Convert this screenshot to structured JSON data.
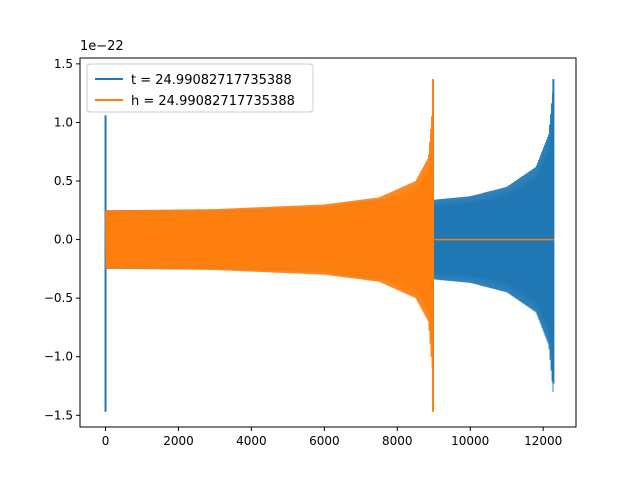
{
  "chart_data": {
    "type": "line",
    "title": "",
    "xlabel": "",
    "ylabel": "",
    "y_offset_label": "1e−22",
    "xlim": [
      -700,
      12900
    ],
    "ylim": [
      -1.6,
      1.55
    ],
    "x_ticks": [
      0,
      2000,
      4000,
      6000,
      8000,
      10000,
      12000
    ],
    "x_tick_labels": [
      "0",
      "2000",
      "4000",
      "6000",
      "8000",
      "10000",
      "12000"
    ],
    "y_ticks": [
      -1.5,
      -1.0,
      -0.5,
      0.0,
      0.5,
      1.0,
      1.5
    ],
    "y_tick_labels": [
      "−1.5",
      "−1.0",
      "−0.5",
      "0.0",
      "0.5",
      "1.0",
      "1.5"
    ],
    "grid": false,
    "legend_position": "upper-left",
    "series": [
      {
        "name": "t = 24.99082717735388",
        "color": "#1f77b4",
        "x_range": [
          0,
          12300
        ],
        "spike_at_start": {
          "x": 0,
          "min": -1.47,
          "max": 1.06
        },
        "envelope": [
          {
            "x": 0,
            "amplitude": 0.25
          },
          {
            "x": 3000,
            "amplitude": 0.25
          },
          {
            "x": 6000,
            "amplitude": 0.28
          },
          {
            "x": 8000,
            "amplitude": 0.36
          },
          {
            "x": 9000,
            "amplitude": 0.34
          },
          {
            "x": 10000,
            "amplitude": 0.37
          },
          {
            "x": 11000,
            "amplitude": 0.45
          },
          {
            "x": 11800,
            "amplitude": 0.62
          },
          {
            "x": 12150,
            "amplitude": 0.9
          },
          {
            "x": 12270,
            "amplitude": 1.3
          }
        ],
        "end": {
          "x": 12280,
          "min": -1.23,
          "max": 1.37
        }
      },
      {
        "name": "h = 24.99082717735388",
        "color": "#ff7f0e",
        "x_range": [
          0,
          12300
        ],
        "envelope": [
          {
            "x": 0,
            "amplitude": 0.25
          },
          {
            "x": 3000,
            "amplitude": 0.26
          },
          {
            "x": 6000,
            "amplitude": 0.3
          },
          {
            "x": 7500,
            "amplitude": 0.36
          },
          {
            "x": 8500,
            "amplitude": 0.5
          },
          {
            "x": 8850,
            "amplitude": 0.7
          },
          {
            "x": 8950,
            "amplitude": 1.1
          }
        ],
        "end": {
          "x": 8980,
          "min": -1.47,
          "max": 1.37
        },
        "flat_after": {
          "x_start": 9000,
          "x_end": 12300,
          "value": 0.0
        }
      }
    ]
  }
}
